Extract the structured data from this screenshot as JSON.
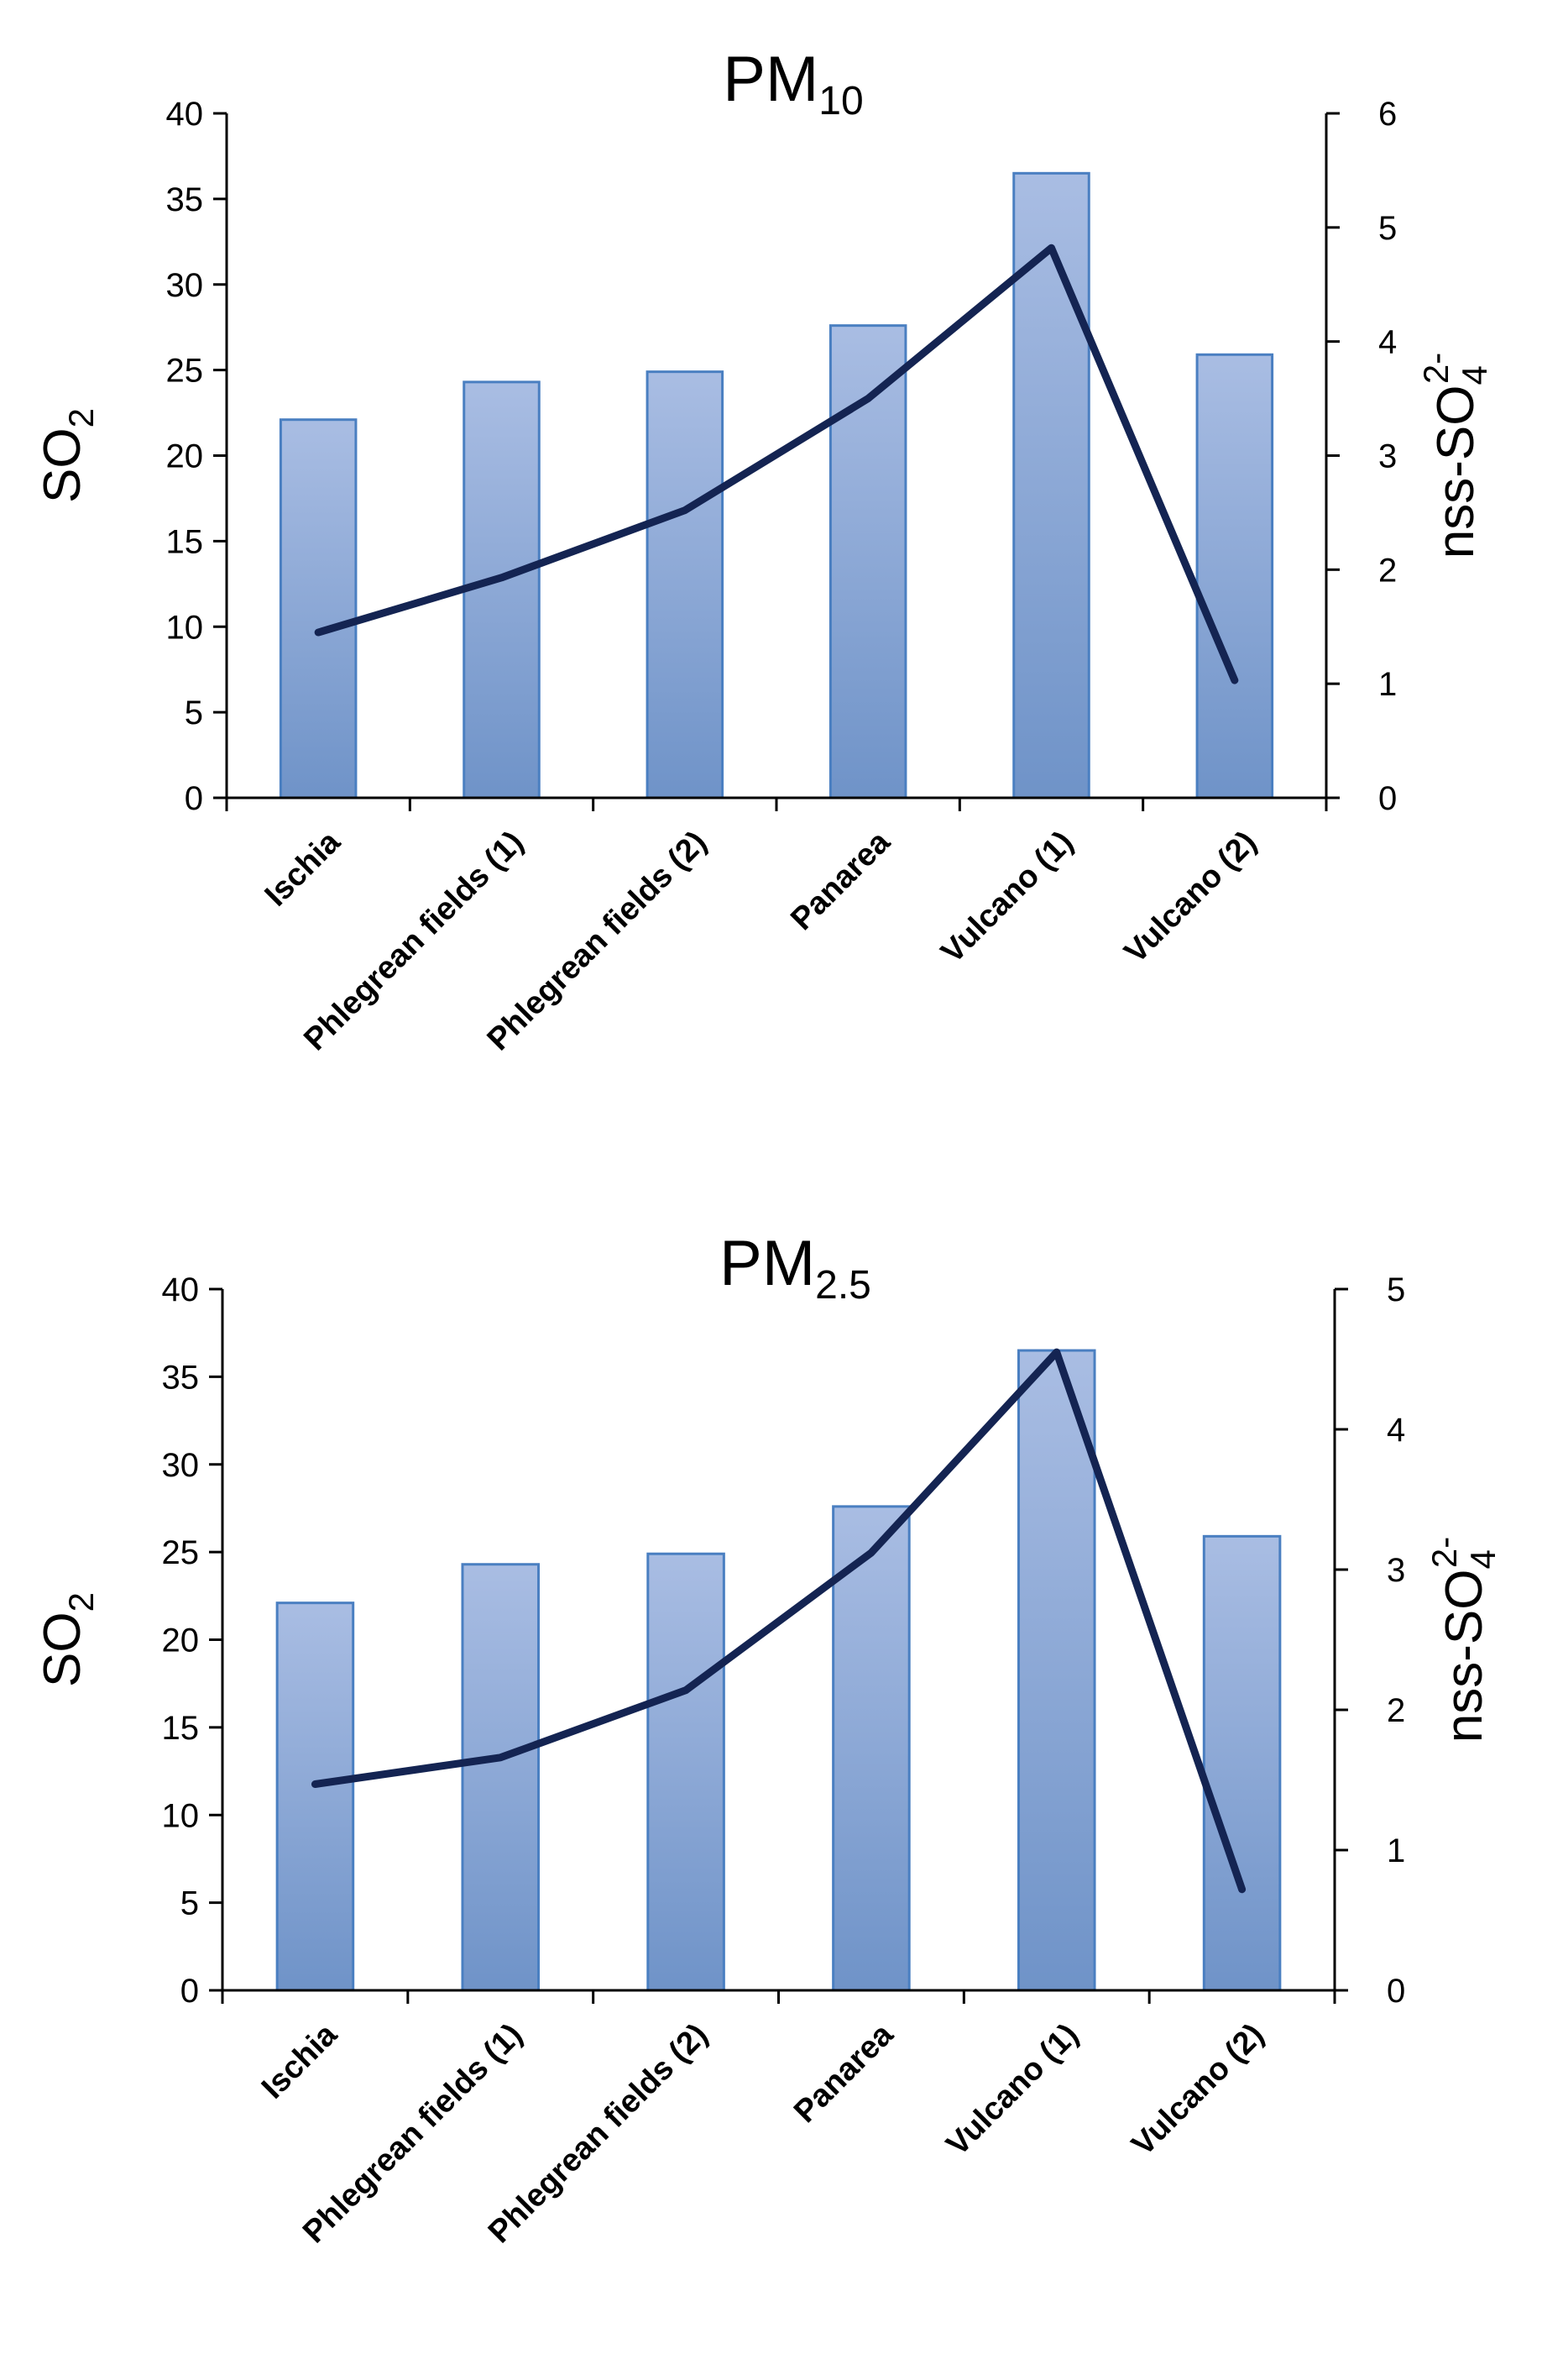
{
  "chart_data": [
    {
      "type": "bar",
      "title": "PM",
      "title_sub": "10",
      "categories": [
        "Ischia",
        "Phlegrean fields (1)",
        "Phlegrean fields (2)",
        "Panarea",
        "Vulcano (1)",
        "Vulcano (2)"
      ],
      "series": [
        {
          "name": "SO2",
          "type": "bar",
          "axis": "left",
          "values": [
            22.1,
            24.3,
            24.9,
            27.6,
            36.5,
            25.9
          ]
        },
        {
          "name": "nss-SO4 2-",
          "type": "line",
          "axis": "right",
          "values": [
            1.45,
            1.93,
            2.52,
            3.5,
            4.82,
            1.03
          ]
        }
      ],
      "ylabel_left": "SO",
      "ylabel_left_sub": "2",
      "ylabel_right": "nss-SO",
      "ylabel_right_sub": "4",
      "ylabel_right_sup": "2-",
      "ylim_left": [
        0,
        40
      ],
      "yticks_left": [
        "0",
        "5",
        "10",
        "15",
        "20",
        "25",
        "30",
        "35",
        "40"
      ],
      "ylim_right": [
        0,
        6
      ],
      "yticks_right": [
        "0",
        "1",
        "2",
        "3",
        "4",
        "5",
        "6"
      ]
    },
    {
      "type": "bar",
      "title": "PM",
      "title_sub": "2.5",
      "categories": [
        "Ischia",
        "Phlegrean fields (1)",
        "Phlegrean fields (2)",
        "Panarea",
        "Vulcano (1)",
        "Vulcano (2)"
      ],
      "series": [
        {
          "name": "SO2",
          "type": "bar",
          "axis": "left",
          "values": [
            22.1,
            24.3,
            24.9,
            27.6,
            36.5,
            25.9
          ]
        },
        {
          "name": "nss-SO4 2-",
          "type": "line",
          "axis": "right",
          "values": [
            1.47,
            1.66,
            2.14,
            3.12,
            4.55,
            0.72
          ]
        }
      ],
      "ylabel_left": "SO",
      "ylabel_left_sub": "2",
      "ylabel_right": "nss-SO",
      "ylabel_right_sub": "4",
      "ylabel_right_sup": "2-",
      "ylim_left": [
        0,
        40
      ],
      "yticks_left": [
        "0",
        "5",
        "10",
        "15",
        "20",
        "25",
        "30",
        "35",
        "40"
      ],
      "ylim_right": [
        0,
        5
      ],
      "yticks_right": [
        "0",
        "1",
        "2",
        "3",
        "4",
        "5"
      ]
    }
  ],
  "colors": {
    "bar_top": "#a9bde3",
    "bar_bottom": "#6f93c8",
    "bar_edge": "#4a7fc1",
    "line": "#142452",
    "axis": "#000000"
  }
}
